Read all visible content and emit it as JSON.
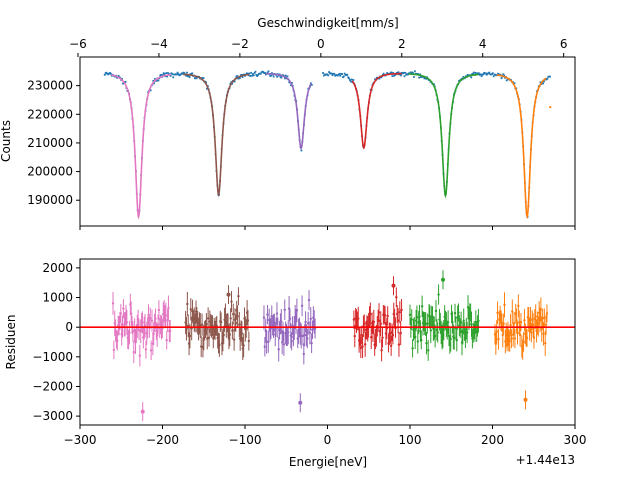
{
  "chart_data": [
    {
      "type": "scatter",
      "ylabel": "Counts",
      "x2label": "Geschwindigkeit[mm/s]",
      "xlim": [
        -300,
        300
      ],
      "ylim": [
        181000,
        240000
      ],
      "x2lim": [
        -5.95,
        6.28
      ],
      "yticks": [
        190000,
        200000,
        210000,
        220000,
        230000
      ],
      "ytick_labels": [
        "190000",
        "200000",
        "210000",
        "220000",
        "230000"
      ],
      "x2ticks": [
        -6,
        -4,
        -2,
        0,
        2,
        4,
        6
      ],
      "x2tick_labels": [
        "−6",
        "−4",
        "−2",
        "0",
        "2",
        "4",
        "6"
      ],
      "grid": false,
      "baseline": 235000,
      "data_range": [
        -270,
        270
      ],
      "point_color": "#1f77b4",
      "outlier": {
        "x": 270,
        "y": 222500,
        "color": "#ff7f0e"
      },
      "gap": [
        -18,
        -6
      ],
      "dips": [
        {
          "center": -229,
          "depth": 50600,
          "width": 5,
          "color": "#e377c2"
        },
        {
          "center": -132,
          "depth": 42800,
          "width": 5,
          "color": "#8c564b"
        },
        {
          "center": -32,
          "depth": 26600,
          "width": 5,
          "color": "#9467bd"
        },
        {
          "center": 44,
          "depth": 26400,
          "width": 5,
          "color": "#d62728"
        },
        {
          "center": 143,
          "depth": 43200,
          "width": 5,
          "color": "#2ca02c"
        },
        {
          "center": 242,
          "depth": 50500,
          "width": 5,
          "color": "#ff7f0e"
        }
      ],
      "fits": [
        {
          "from": -262,
          "to": -190,
          "center": -229,
          "color": "#e377c2"
        },
        {
          "from": -175,
          "to": -95,
          "center": -132,
          "color": "#8c564b"
        },
        {
          "from": -75,
          "to": -20,
          "center": -32,
          "color": "#9467bd"
        },
        {
          "from": 30,
          "to": 90,
          "center": 44,
          "color": "#d62728"
        },
        {
          "from": 98,
          "to": 183,
          "center": 143,
          "color": "#2ca02c"
        },
        {
          "from": 205,
          "to": 265,
          "center": 242,
          "color": "#ff7f0e"
        }
      ]
    },
    {
      "type": "scatter",
      "xlabel": "Energie[neV]",
      "ylabel": "Residuen",
      "offset_label": "+1.44e13",
      "xlim": [
        -300,
        300
      ],
      "ylim": [
        -3300,
        2300
      ],
      "xticks": [
        -300,
        -200,
        -100,
        0,
        100,
        200,
        300
      ],
      "xtick_labels": [
        "−300",
        "−200",
        "−100",
        "0",
        "100",
        "200",
        "300"
      ],
      "yticks": [
        -3000,
        -2000,
        -1000,
        0,
        1000,
        2000
      ],
      "ytick_labels": [
        "−3000",
        "−2000",
        "−1000",
        "0",
        "1000",
        "2000"
      ],
      "zero_line_color": "#ff0000",
      "grid": false,
      "segments": [
        {
          "from": -260,
          "to": -190,
          "color": "#e377c2",
          "extreme_x": -224,
          "extreme_y": -2850
        },
        {
          "from": -172,
          "to": -95,
          "color": "#8c564b",
          "extreme_x": -120,
          "extreme_y": 1100
        },
        {
          "from": -77,
          "to": -15,
          "color": "#9467bd",
          "extreme_x": -33,
          "extreme_y": -2550
        },
        {
          "from": 32,
          "to": 90,
          "color": "#d62728",
          "extreme_x": 80,
          "extreme_y": 1400
        },
        {
          "from": 100,
          "to": 183,
          "color": "#2ca02c",
          "extreme_x": 140,
          "extreme_y": 1600
        },
        {
          "from": 203,
          "to": 267,
          "color": "#ff7f0e",
          "extreme_x": 240,
          "extreme_y": -2450
        }
      ]
    }
  ]
}
